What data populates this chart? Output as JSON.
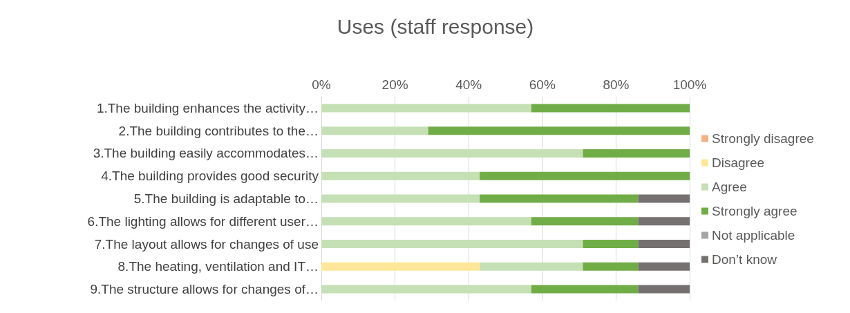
{
  "chart_data": {
    "type": "bar",
    "title": "Uses (staff response)",
    "orientation": "horizontal",
    "stacked": true,
    "categories": [
      "1.The building enhances the activity…",
      "2.The building contributes to the…",
      "3.The building easily accommodates…",
      "4.The building provides good security",
      "5.The building is adaptable to…",
      "6.The lighting allows for different user…",
      "7.The layout allows for changes of use",
      "8.The heating, ventilation and IT…",
      "9.The structure allows for changes of…"
    ],
    "series": [
      {
        "name": "Strongly disagree",
        "color": "#f4b183",
        "values": [
          0,
          0,
          0,
          0,
          0,
          0,
          0,
          0,
          0
        ]
      },
      {
        "name": "Disagree",
        "color": "#ffe699",
        "values": [
          0,
          0,
          0,
          0,
          0,
          0,
          0,
          43,
          0
        ]
      },
      {
        "name": "Agree",
        "color": "#c5e0b4",
        "values": [
          57,
          29,
          71,
          43,
          43,
          57,
          71,
          28,
          57
        ]
      },
      {
        "name": "Strongly agree",
        "color": "#70ad47",
        "values": [
          43,
          71,
          29,
          57,
          43,
          29,
          15,
          15,
          29
        ]
      },
      {
        "name": "Not applicable",
        "color": "#a5a5a5",
        "values": [
          0,
          0,
          0,
          0,
          0,
          0,
          0,
          0,
          0
        ]
      },
      {
        "name": "Don’t know",
        "color": "#767171",
        "values": [
          0,
          0,
          0,
          0,
          14,
          14,
          14,
          14,
          14
        ]
      }
    ],
    "xlim": [
      0,
      100
    ],
    "xticks": [
      {
        "value": 0,
        "label": "0%"
      },
      {
        "value": 20,
        "label": "20%"
      },
      {
        "value": 40,
        "label": "40%"
      },
      {
        "value": 60,
        "label": "60%"
      },
      {
        "value": 80,
        "label": "80%"
      },
      {
        "value": 100,
        "label": "100%"
      }
    ],
    "grid": "x",
    "legend": "right"
  }
}
